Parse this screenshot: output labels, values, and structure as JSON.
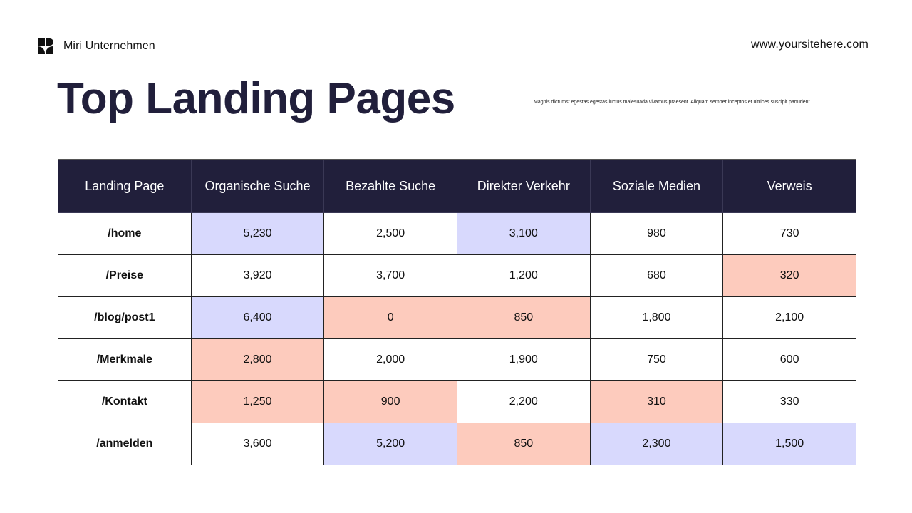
{
  "header": {
    "brand_name": "Miri Unternehmen",
    "website": "www.yoursitehere.com"
  },
  "title": "Top Landing Pages",
  "description": "Magnis dictumst egestas egestas luctus malesuada vivamus praesent. Aliquam semper inceptos et ultrices suscipit parturient.",
  "colors": {
    "header_bg": "#211f3b",
    "highlight_high": "#d8d9fd",
    "highlight_low": "#fdcbbd"
  },
  "table": {
    "columns": [
      "Landing Page",
      "Organische Suche",
      "Bezahlte Suche",
      "Direkter Verkehr",
      "Soziale Medien",
      "Verweis"
    ],
    "rows": [
      {
        "page": "/home",
        "cells": [
          "5,230",
          "2,500",
          "3,100",
          "980",
          "730"
        ],
        "shade": [
          "hi",
          "",
          "hi",
          "",
          ""
        ]
      },
      {
        "page": "/Preise",
        "cells": [
          "3,920",
          "3,700",
          "1,200",
          "680",
          "320"
        ],
        "shade": [
          "",
          "",
          "",
          "",
          "lo"
        ]
      },
      {
        "page": "/blog/post1",
        "cells": [
          "6,400",
          "0",
          "850",
          "1,800",
          "2,100"
        ],
        "shade": [
          "hi",
          "lo",
          "lo",
          "",
          ""
        ]
      },
      {
        "page": "/Merkmale",
        "cells": [
          "2,800",
          "2,000",
          "1,900",
          "750",
          "600"
        ],
        "shade": [
          "lo",
          "",
          "",
          "",
          ""
        ]
      },
      {
        "page": "/Kontakt",
        "cells": [
          "1,250",
          "900",
          "2,200",
          "310",
          "330"
        ],
        "shade": [
          "lo",
          "lo",
          "",
          "lo",
          ""
        ]
      },
      {
        "page": "/anmelden",
        "cells": [
          "3,600",
          "5,200",
          "850",
          "2,300",
          "1,500"
        ],
        "shade": [
          "",
          "hi",
          "lo",
          "hi",
          "hi"
        ]
      }
    ]
  }
}
